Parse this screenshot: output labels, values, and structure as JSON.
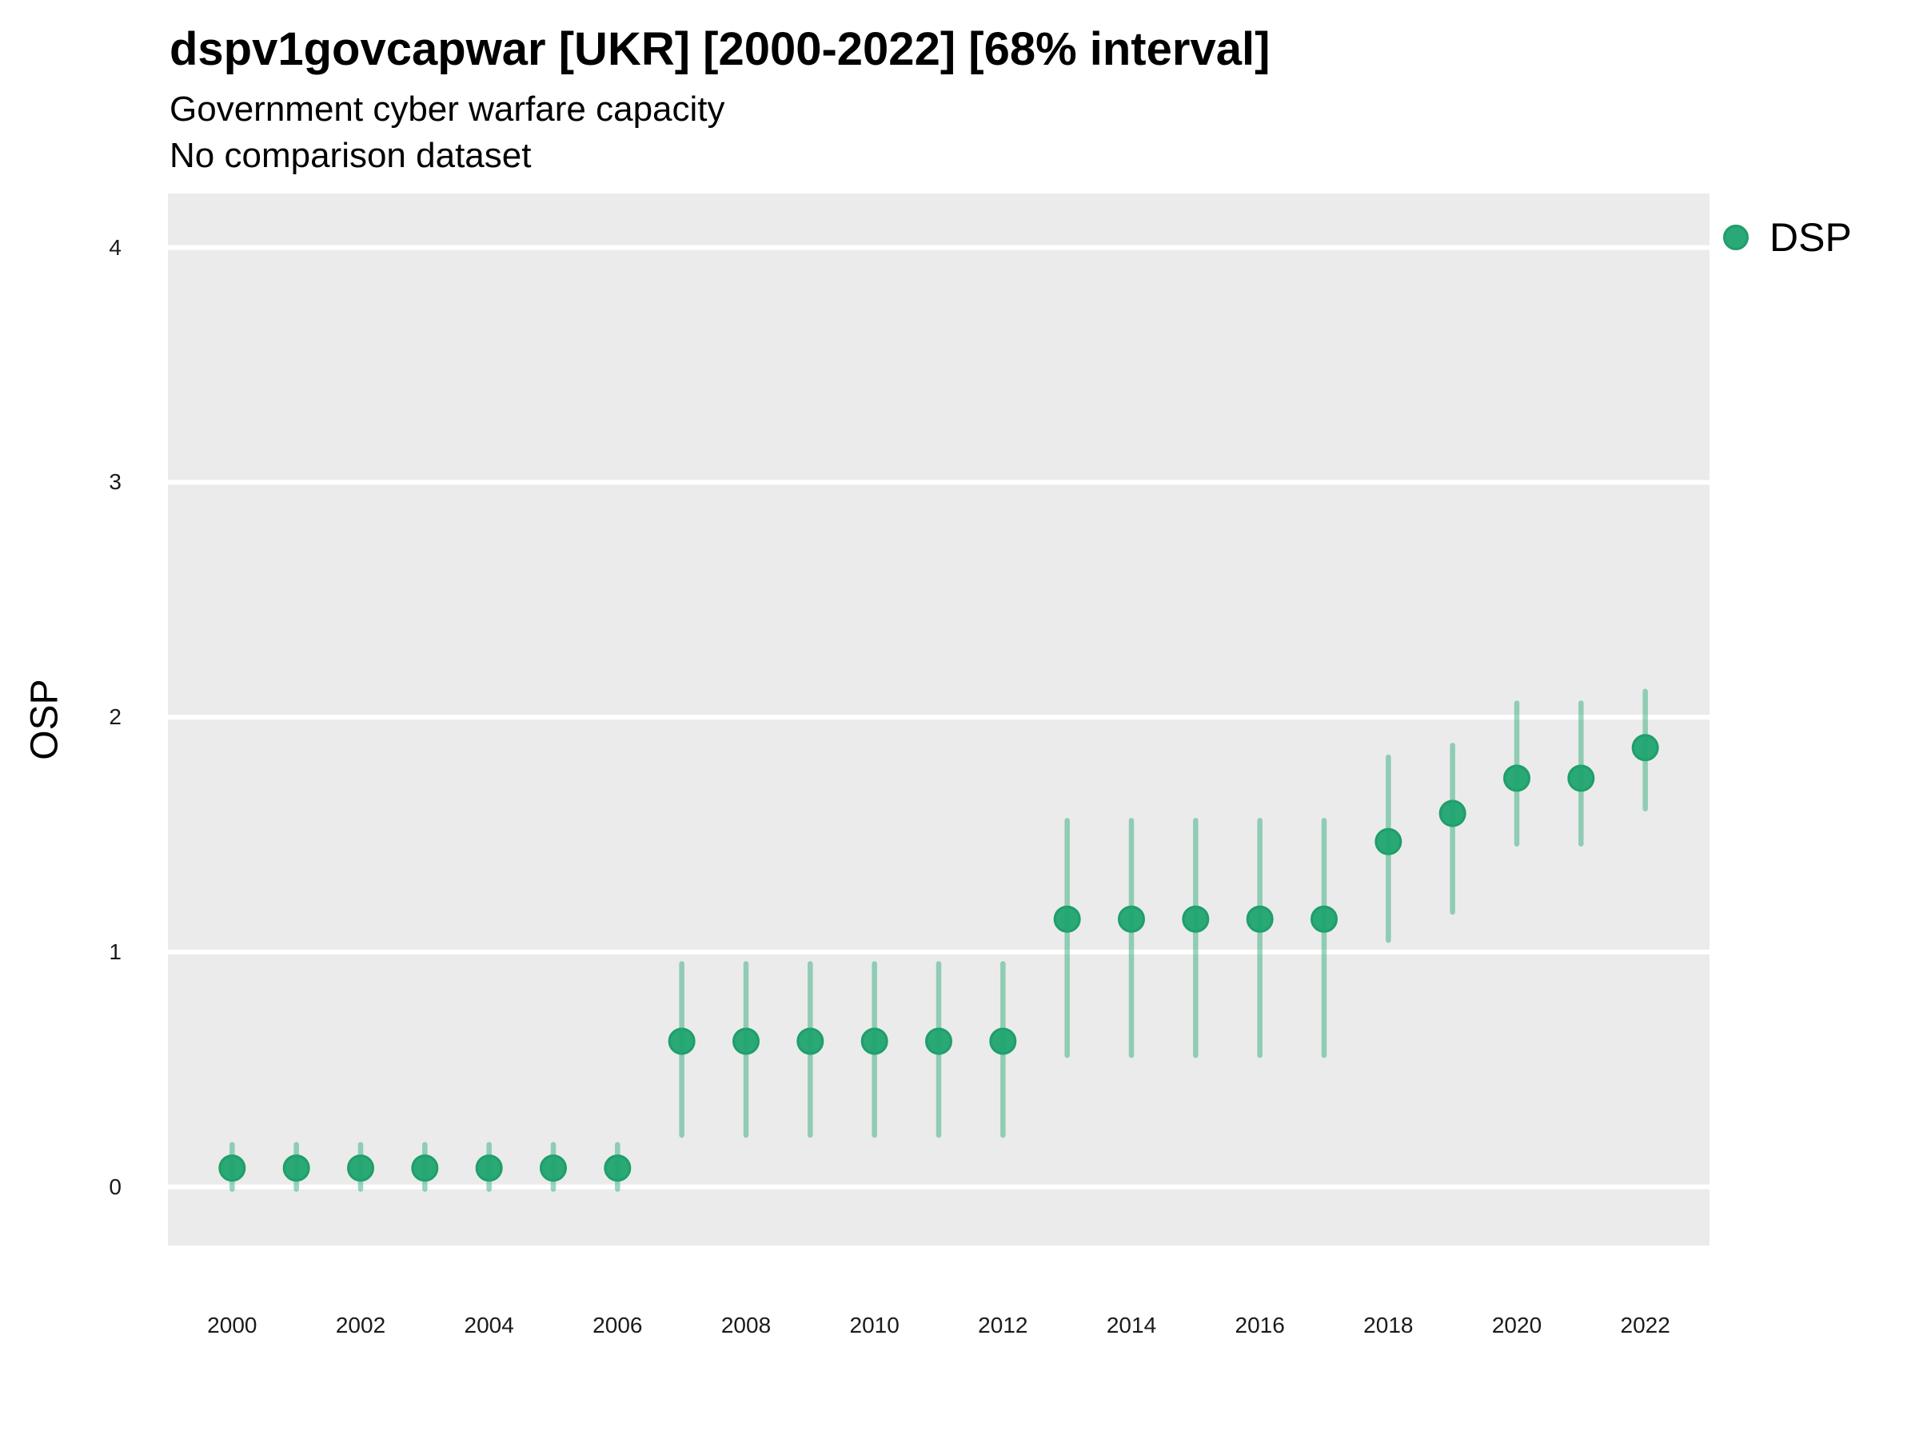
{
  "header": {
    "title": "dspv1govcapwar [UKR] [2000-2022] [68% interval]",
    "subtitle": "Government cyber warfare capacity",
    "note": "No comparison dataset"
  },
  "legend": {
    "label": "DSP"
  },
  "y_axis": {
    "title": "OSP",
    "ticks": [
      0,
      1,
      2,
      3,
      4
    ]
  },
  "x_axis": {
    "ticks": [
      2000,
      2002,
      2004,
      2006,
      2008,
      2010,
      2012,
      2014,
      2016,
      2018,
      2020,
      2022
    ]
  },
  "colors": {
    "marker_fill": "#2aa876",
    "marker_stroke": "#1f9e6a",
    "interval_line": "#1fa671",
    "interval_opacity": 0.45,
    "panel_background": "#ebebeb",
    "gridline": "#ffffff",
    "text": "#000000"
  },
  "chart_data": {
    "type": "scatter",
    "title": "dspv1govcapwar [UKR] [2000-2022] [68% interval]",
    "subtitle": "Government cyber warfare capacity",
    "note": "No comparison dataset",
    "xlabel": "",
    "ylabel": "OSP",
    "interval_level": "68%",
    "xlim": [
      1999,
      2023
    ],
    "ylim": [
      -0.25,
      4.23
    ],
    "grid": "major-horizontal-only",
    "legend_position": "top-right",
    "series": [
      {
        "name": "DSP",
        "x": [
          2000,
          2001,
          2002,
          2003,
          2004,
          2005,
          2006,
          2007,
          2008,
          2009,
          2010,
          2011,
          2012,
          2013,
          2014,
          2015,
          2016,
          2017,
          2018,
          2019,
          2020,
          2021,
          2022
        ],
        "y": [
          0.08,
          0.08,
          0.08,
          0.08,
          0.08,
          0.08,
          0.08,
          0.62,
          0.62,
          0.62,
          0.62,
          0.62,
          0.62,
          1.14,
          1.14,
          1.14,
          1.14,
          1.14,
          1.47,
          1.59,
          1.74,
          1.74,
          1.87
        ],
        "y_low": [
          -0.01,
          -0.01,
          -0.01,
          -0.01,
          -0.01,
          -0.01,
          -0.01,
          0.22,
          0.22,
          0.22,
          0.22,
          0.22,
          0.22,
          0.56,
          0.56,
          0.56,
          0.56,
          0.56,
          1.05,
          1.17,
          1.46,
          1.46,
          1.61
        ],
        "y_high": [
          0.18,
          0.18,
          0.18,
          0.18,
          0.18,
          0.18,
          0.18,
          0.95,
          0.95,
          0.95,
          0.95,
          0.95,
          0.95,
          1.56,
          1.56,
          1.56,
          1.56,
          1.56,
          1.83,
          1.88,
          2.06,
          2.06,
          2.11
        ]
      }
    ]
  }
}
